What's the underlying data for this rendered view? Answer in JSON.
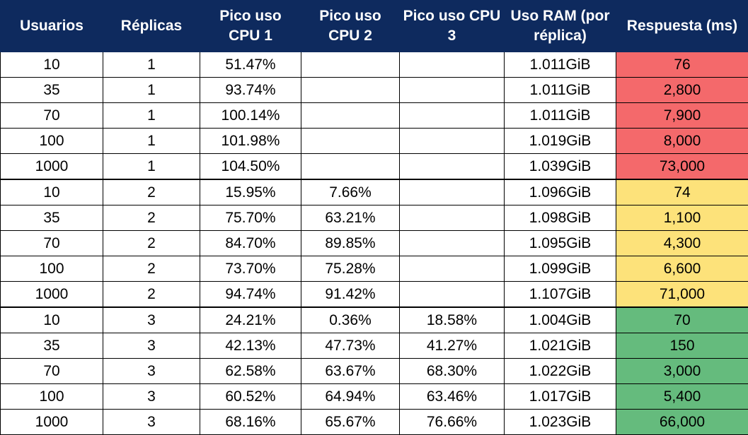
{
  "table": {
    "headers": [
      "Usuarios",
      "Réplicas",
      "Pico uso CPU 1",
      "Pico uso CPU 2",
      "Pico uso CPU 3",
      "Uso RAM (por réplica)",
      "Respuesta (ms)"
    ],
    "rows": [
      [
        "10",
        "1",
        "51.47%",
        "",
        "",
        "1.011GiB",
        "76"
      ],
      [
        "35",
        "1",
        "93.74%",
        "",
        "",
        "1.011GiB",
        "2,800"
      ],
      [
        "70",
        "1",
        "100.14%",
        "",
        "",
        "1.011GiB",
        "7,900"
      ],
      [
        "100",
        "1",
        "101.98%",
        "",
        "",
        "1.019GiB",
        "8,000"
      ],
      [
        "1000",
        "1",
        "104.50%",
        "",
        "",
        "1.039GiB",
        "73,000"
      ],
      [
        "10",
        "2",
        "15.95%",
        "7.66%",
        "",
        "1.096GiB",
        "74"
      ],
      [
        "35",
        "2",
        "75.70%",
        "63.21%",
        "",
        "1.098GiB",
        "1,100"
      ],
      [
        "70",
        "2",
        "84.70%",
        "89.85%",
        "",
        "1.095GiB",
        "4,300"
      ],
      [
        "100",
        "2",
        "73.70%",
        "75.28%",
        "",
        "1.099GiB",
        "6,600"
      ],
      [
        "1000",
        "2",
        "94.74%",
        "91.42%",
        "",
        "1.107GiB",
        "71,000"
      ],
      [
        "10",
        "3",
        "24.21%",
        "0.36%",
        "18.58%",
        "1.004GiB",
        "70"
      ],
      [
        "35",
        "3",
        "42.13%",
        "47.73%",
        "41.27%",
        "1.021GiB",
        "150"
      ],
      [
        "70",
        "3",
        "62.58%",
        "63.67%",
        "68.30%",
        "1.022GiB",
        "3,000"
      ],
      [
        "100",
        "3",
        "60.52%",
        "64.94%",
        "63.46%",
        "1.017GiB",
        "5,400"
      ],
      [
        "1000",
        "3",
        "68.16%",
        "65.67%",
        "76.66%",
        "1.023GiB",
        "66,000"
      ]
    ]
  },
  "colors": {
    "header_bg": "#0e2a5e",
    "header_text": "#ffffff",
    "replicas_1": "#f4696b",
    "replicas_2": "#fde27a",
    "replicas_3": "#65bb7d"
  }
}
